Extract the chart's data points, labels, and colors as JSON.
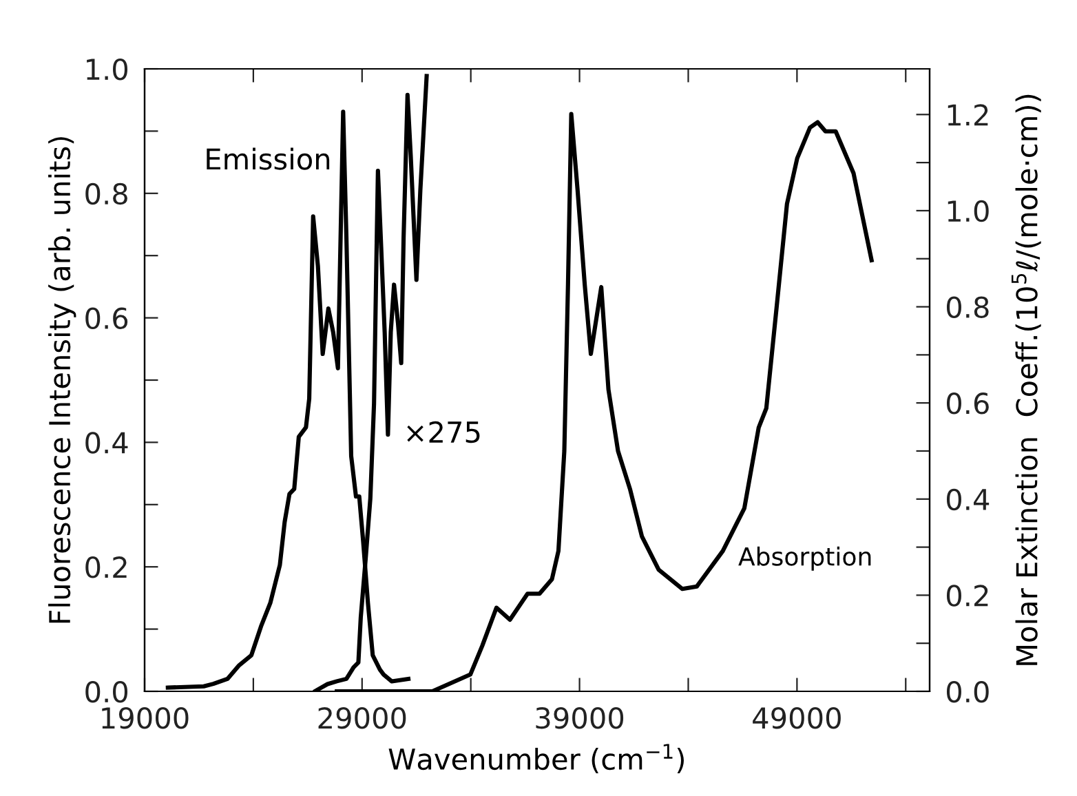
{
  "chart_data": {
    "type": "line",
    "xlabel": "Wavenumber (cm$^{−1}$)",
    "ylabel": "Fluorescence Intensity (arb. units)",
    "y2label": "Molar Extinction  Coeff.(10$^{5}$ℓ/(mole·cm))",
    "xlim": [
      19000,
      55100
    ],
    "xticks": [
      19000,
      {
        "value": 24000,
        "label": null
      },
      29000,
      {
        "value": 34000,
        "label": null
      },
      39000,
      {
        "value": 44000,
        "label": null
      },
      49000,
      {
        "value": 54000,
        "label": null
      }
    ],
    "ylim": [
      0,
      1.0
    ],
    "yticks": [
      {
        "value": 0,
        "label": "0.0"
      },
      {
        "value": 0.1,
        "label": null
      },
      0.2,
      {
        "value": 0.3,
        "label": null
      },
      0.4,
      {
        "value": 0.5,
        "label": null
      },
      0.6,
      {
        "value": 0.7,
        "label": null
      },
      0.8,
      {
        "value": 0.9,
        "label": null
      },
      {
        "value": 1.0,
        "label": "1.0"
      }
    ],
    "y2lim": [
      0,
      1.295
    ],
    "y2ticks": [
      {
        "value": 0,
        "label": "0.0"
      },
      {
        "value": 0.1,
        "label": null
      },
      0.2,
      {
        "value": 0.3,
        "label": null
      },
      0.4,
      {
        "value": 0.5,
        "label": null
      },
      0.6,
      {
        "value": 0.7,
        "label": null
      },
      0.8,
      {
        "value": 0.9,
        "label": null
      },
      {
        "value": 1.0,
        "label": "1.0"
      },
      {
        "value": 1.1,
        "label": null
      },
      1.2
    ],
    "grid": false,
    "legend": false,
    "marker": "none",
    "line_style": "solid",
    "series": [
      {
        "name": "Emission",
        "color": "#000000",
        "x": [
          20070,
          21720,
          22160,
          22810,
          23350,
          23910,
          24350,
          24780,
          25220,
          25440,
          25660,
          25880,
          26090,
          26420,
          26570,
          26750,
          26970,
          27190,
          27450,
          27670,
          27890,
          28130,
          28280,
          28500,
          28720,
          28870,
          29050,
          29270,
          29490,
          29820,
          29990,
          30370,
          31130
        ],
        "values": [
          0.006,
          0.008,
          0.012,
          0.02,
          0.042,
          0.058,
          0.104,
          0.142,
          0.203,
          0.272,
          0.317,
          0.325,
          0.409,
          0.424,
          0.47,
          0.763,
          0.683,
          0.542,
          0.615,
          0.577,
          0.519,
          0.931,
          0.729,
          0.378,
          0.313,
          0.313,
          0.241,
          0.142,
          0.058,
          0.035,
          0.027,
          0.016,
          0.02
        ]
      },
      {
        "name": "×275",
        "color": "#000000",
        "axis": "y2",
        "x": [
          26860,
          27410,
          27840,
          28280,
          28610,
          28830,
          28940,
          29160,
          29380,
          29550,
          29640,
          29730,
          29860,
          30040,
          30190,
          30320,
          30470,
          30650,
          30800,
          30910,
          31090,
          31240,
          31500,
          31680,
          31970
        ],
        "values": [
          0.001,
          0.015,
          0.021,
          0.026,
          0.05,
          0.06,
          0.154,
          0.273,
          0.401,
          0.599,
          0.846,
          1.083,
          0.944,
          0.747,
          0.534,
          0.747,
          0.846,
          0.767,
          0.683,
          0.944,
          1.241,
          1.112,
          0.856,
          1.043,
          1.28
        ]
      },
      {
        "name": "Absorption",
        "color": "#000000",
        "axis": "y2",
        "x": [
          27840,
          32230,
          33980,
          34530,
          35180,
          35800,
          36610,
          37160,
          37730,
          38030,
          38300,
          38470,
          38620,
          38910,
          39240,
          39520,
          40000,
          40330,
          40770,
          41320,
          41870,
          42640,
          43730,
          44390,
          45590,
          46580,
          47240,
          47590,
          48070,
          48540,
          49010,
          49600,
          49950,
          50310,
          50780,
          51600,
          52430
        ],
        "values": [
          0.0,
          0.0,
          0.035,
          0.095,
          0.174,
          0.149,
          0.203,
          0.203,
          0.233,
          0.292,
          0.5,
          0.846,
          1.201,
          1.043,
          0.846,
          0.702,
          0.841,
          0.628,
          0.5,
          0.421,
          0.322,
          0.253,
          0.213,
          0.218,
          0.292,
          0.381,
          0.549,
          0.589,
          0.802,
          1.014,
          1.109,
          1.173,
          1.184,
          1.165,
          1.165,
          1.078,
          0.897
        ]
      }
    ]
  }
}
